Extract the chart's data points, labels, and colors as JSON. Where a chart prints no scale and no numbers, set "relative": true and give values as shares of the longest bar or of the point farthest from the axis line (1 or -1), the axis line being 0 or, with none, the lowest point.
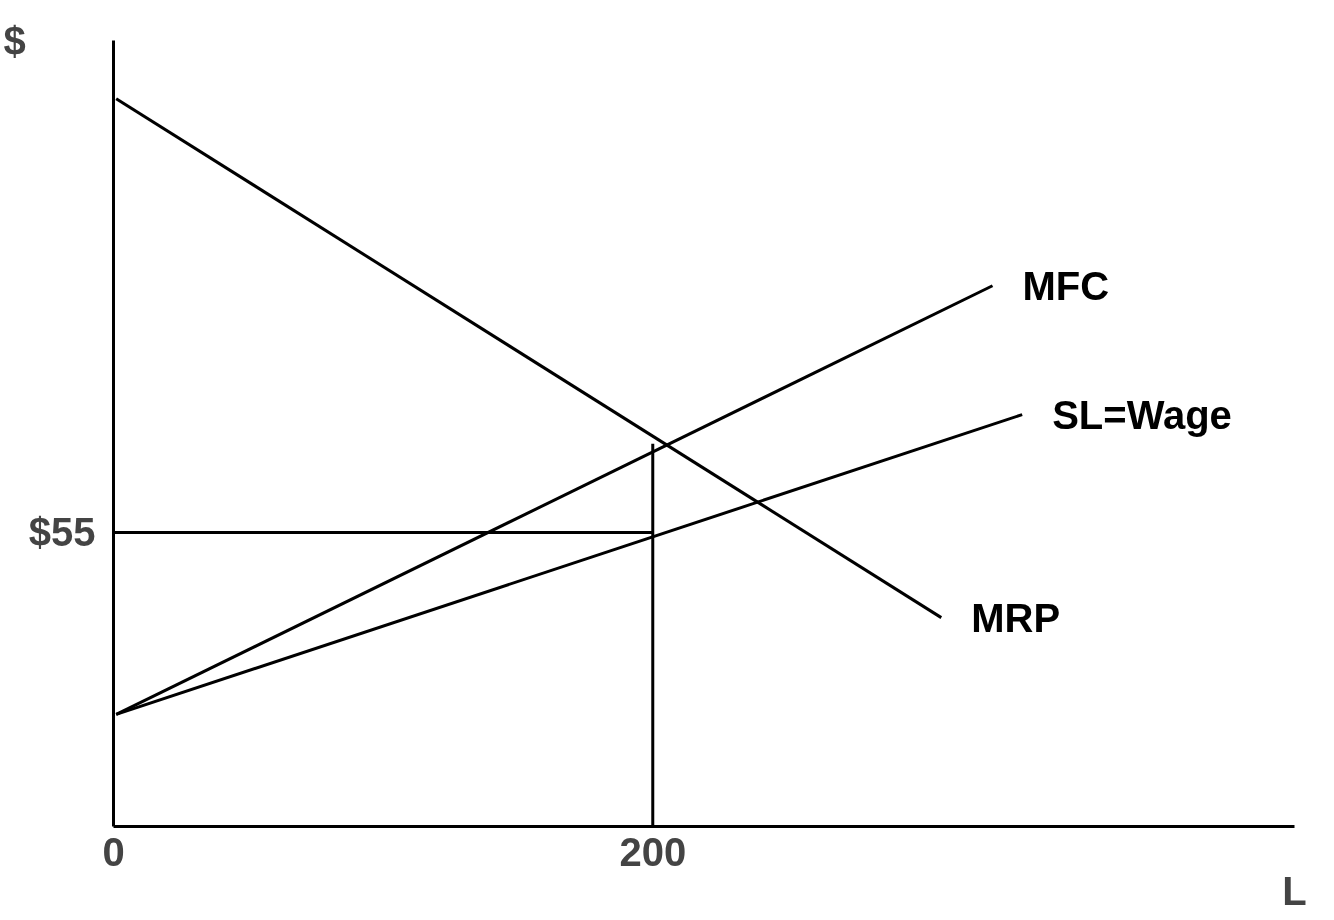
{
  "chart_data": {
    "type": "line",
    "relative": true,
    "xlabel": "L",
    "ylabel": "$",
    "xlim": [
      0,
      438
    ],
    "xticks": [
      0,
      200
    ],
    "grid": false,
    "marker": "none",
    "line_style": "solid",
    "annotations": [
      "$55"
    ],
    "series": [
      {
        "name": "MFC",
        "color": "#000000",
        "x": [
          1,
          326
        ],
        "values": [
          0.154,
          0.743
        ]
      },
      {
        "name": "SL=Wage",
        "color": "#000000",
        "x": [
          1,
          337
        ],
        "values": [
          0.154,
          0.566
        ]
      },
      {
        "name": "MRP",
        "color": "#000000",
        "x": [
          1,
          307
        ],
        "values": [
          1.0,
          0.287
        ]
      },
      {
        "color": "#000000",
        "x": [
          0,
          200
        ],
        "values": [
          0.404,
          0.404
        ]
      },
      {
        "color": "#000000",
        "x": [
          200,
          200
        ],
        "values": [
          0,
          0.526
        ]
      }
    ]
  }
}
